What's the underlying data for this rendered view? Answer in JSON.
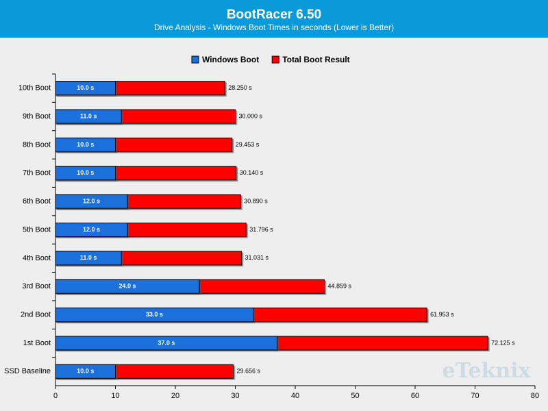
{
  "chart_data": {
    "type": "bar",
    "orientation": "horizontal",
    "overlap": true,
    "title": "BootRacer 6.50",
    "subtitle": "Drive Analysis - Windows Boot Times in seconds (Lower is Better)",
    "watermark": "eTeknix",
    "categories": [
      "10th Boot",
      "9th Boot",
      "8th Boot",
      "7th Boot",
      "6th Boot",
      "5th Boot",
      "4th Boot",
      "3rd Boot",
      "2nd Boot",
      "1st Boot",
      "SSD Baseline"
    ],
    "series": [
      {
        "name": "Total Boot Result",
        "color": "#ff0000",
        "values": [
          28.25,
          30,
          29.453,
          30.14,
          30.89,
          31.796,
          31.031,
          44.859,
          61.953,
          72.125,
          29.656
        ],
        "value_labels": [
          "28.250 s",
          "30.000 s",
          "29.453 s",
          "30.140 s",
          "30.890 s",
          "31.796 s",
          "31.031 s",
          "44.859 s",
          "61.953 s",
          "72.125 s",
          "29.656 s"
        ]
      },
      {
        "name": "Windows Boot",
        "color": "#1a6fdc",
        "values": [
          10,
          11,
          10,
          10,
          12,
          12,
          11,
          24,
          33,
          37,
          10
        ],
        "value_labels": [
          "10.0 s",
          "11.0 s",
          "10.0 s",
          "10.0 s",
          "12.0 s",
          "12.0 s",
          "11.0 s",
          "24.0 s",
          "33.0 s",
          "37.0 s",
          "10.0 s"
        ]
      }
    ],
    "legend_order": [
      1,
      0
    ],
    "xlim": [
      0,
      80
    ],
    "xticks": [
      0,
      10,
      20,
      30,
      40,
      50,
      60,
      70,
      80
    ]
  }
}
